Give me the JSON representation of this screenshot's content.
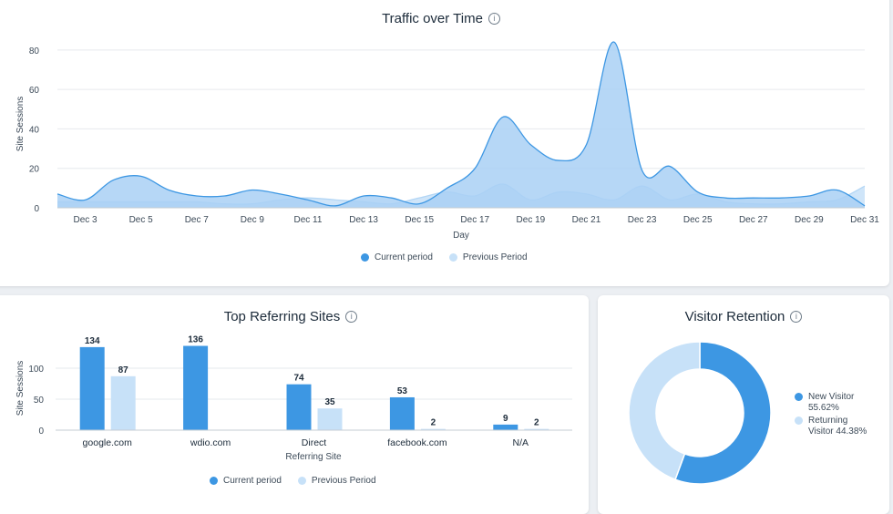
{
  "colors": {
    "current": "#3d97e3",
    "current_fill": "#a9d0f5",
    "previous": "#c7e1f8"
  },
  "traffic": {
    "title": "Traffic over Time",
    "legend_current": "Current period",
    "legend_previous": "Previous Period"
  },
  "referring": {
    "title": "Top Referring Sites",
    "legend_current": "Current period",
    "legend_previous": "Previous Period"
  },
  "retention": {
    "title": "Visitor Retention",
    "items": [
      {
        "label": "New Visitor",
        "value_label": "55.62%"
      },
      {
        "label": "Returning Visitor",
        "value_label": "44.38%"
      }
    ]
  },
  "chart_data": [
    {
      "type": "area",
      "title": "Traffic over Time",
      "xlabel": "Day",
      "ylabel": "Site Sessions",
      "ylim": [
        0,
        85
      ],
      "yticks": [
        0,
        20,
        40,
        60,
        80
      ],
      "xticks": [
        "Dec 3",
        "Dec 5",
        "Dec 7",
        "Dec 9",
        "Dec 11",
        "Dec 13",
        "Dec 15",
        "Dec 17",
        "Dec 19",
        "Dec 21",
        "Dec 23",
        "Dec 25",
        "Dec 27",
        "Dec 29",
        "Dec 31"
      ],
      "x": [
        2,
        3,
        4,
        5,
        6,
        7,
        8,
        9,
        10,
        11,
        12,
        13,
        14,
        15,
        16,
        17,
        18,
        19,
        20,
        21,
        22,
        23,
        24,
        25,
        26,
        27,
        28,
        29,
        30,
        31
      ],
      "series": [
        {
          "name": "Current period",
          "values": [
            7,
            4,
            14,
            16,
            9,
            6,
            6,
            9,
            7,
            4,
            1,
            6,
            5,
            2,
            10,
            20,
            46,
            32,
            24,
            32,
            84,
            19,
            21,
            8,
            5,
            5,
            5,
            6,
            9,
            1
          ]
        },
        {
          "name": "Previous Period",
          "values": [
            3,
            3,
            3,
            3,
            3,
            3,
            2,
            2,
            4,
            5,
            4,
            3,
            2,
            5,
            8,
            6,
            12,
            4,
            8,
            7,
            4,
            11,
            4,
            7,
            3,
            2,
            2,
            3,
            4,
            11
          ]
        }
      ],
      "grid": true,
      "legend": "bottom"
    },
    {
      "type": "bar",
      "title": "Top Referring Sites",
      "xlabel": "Referring Site",
      "ylabel": "Site Sessions",
      "ylim": [
        0,
        150
      ],
      "yticks": [
        0,
        50,
        100
      ],
      "categories": [
        "google.com",
        "wdio.com",
        "Direct",
        "facebook.com",
        "N/A"
      ],
      "series": [
        {
          "name": "Current period",
          "values": [
            134,
            136,
            74,
            53,
            9
          ]
        },
        {
          "name": "Previous Period",
          "values": [
            87,
            null,
            35,
            2,
            2
          ]
        }
      ],
      "grid": true,
      "legend": "bottom"
    },
    {
      "type": "pie",
      "title": "Visitor Retention",
      "categories": [
        "New Visitor",
        "Returning Visitor"
      ],
      "values": [
        55.62,
        44.38
      ],
      "legend": "right"
    }
  ]
}
